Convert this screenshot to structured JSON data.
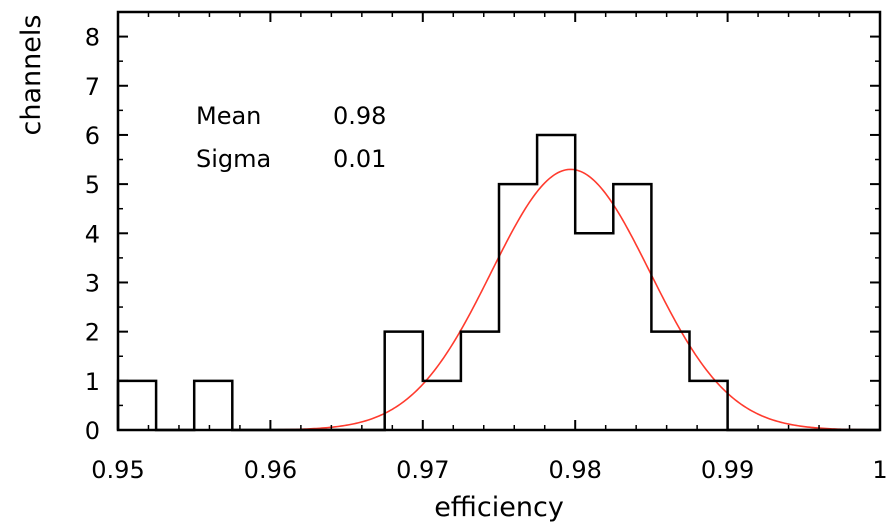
{
  "chart_data": {
    "type": "bar",
    "title": "",
    "xlabel": "efficiency",
    "ylabel": "channels",
    "xlim": [
      0.95,
      1.0
    ],
    "ylim": [
      0,
      8.5
    ],
    "x_ticks": [
      0.95,
      0.96,
      0.97,
      0.98,
      0.99,
      1.0
    ],
    "x_tick_labels": [
      "0.95",
      "0.96",
      "0.97",
      "0.98",
      "0.99",
      "1"
    ],
    "y_ticks": [
      0,
      1,
      2,
      3,
      4,
      5,
      6,
      7,
      8
    ],
    "y_tick_labels": [
      "0",
      "1",
      "2",
      "3",
      "4",
      "5",
      "6",
      "7",
      "8"
    ],
    "grid": false,
    "histogram": {
      "bin_width": 0.0025,
      "bin_edges": [
        0.95,
        0.9525,
        0.955,
        0.9575,
        0.96,
        0.9625,
        0.965,
        0.9675,
        0.97,
        0.9725,
        0.975,
        0.9775,
        0.98,
        0.9825,
        0.985,
        0.9875,
        0.99,
        0.9925,
        0.995,
        0.9975,
        1.0
      ],
      "counts": [
        1,
        0,
        1,
        0,
        0,
        0,
        0,
        2,
        1,
        2,
        5,
        6,
        4,
        5,
        2,
        1,
        0,
        0,
        0,
        0
      ],
      "color": "#000000"
    },
    "fit": {
      "type": "gaussian",
      "mean": 0.9797,
      "sigma": 0.0052,
      "amplitude": 5.3,
      "color": "#ff3b2e"
    },
    "annotations": [
      {
        "label": "Mean",
        "value": "0.98"
      },
      {
        "label": "Sigma",
        "value": "0.01"
      }
    ]
  }
}
